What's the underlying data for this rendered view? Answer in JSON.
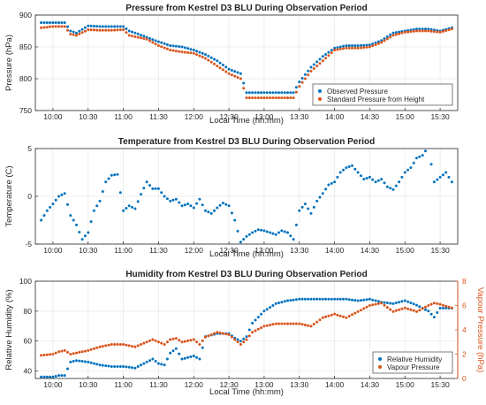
{
  "chart_data": [
    {
      "type": "scatter",
      "title": "Pressure from Kestrel D3 BLU During Observation Period",
      "xlabel": "Local Time (hh:mm)",
      "ylabel": "Pressure (hPa)",
      "xticks": [
        "10:00",
        "10:30",
        "11:00",
        "11:30",
        "12:00",
        "12:30",
        "13:00",
        "13:30",
        "14:00",
        "14:30",
        "15:00",
        "15:30"
      ],
      "xlim": [
        "09:45",
        "15:45"
      ],
      "yticks": [
        750,
        800,
        850,
        900
      ],
      "ylim": [
        750,
        900
      ],
      "grid": true,
      "legend": "bottom-right",
      "series": [
        {
          "name": "Observed Pressure",
          "color": "#0072bd",
          "x": [
            "09:50",
            "10:00",
            "10:10",
            "10:15",
            "10:20",
            "10:30",
            "10:40",
            "10:50",
            "11:00",
            "11:05",
            "11:10",
            "11:20",
            "11:30",
            "11:40",
            "11:50",
            "12:00",
            "12:10",
            "12:20",
            "12:30",
            "12:40",
            "12:45",
            "13:00",
            "13:15",
            "13:25",
            "13:30",
            "13:40",
            "13:50",
            "14:00",
            "14:10",
            "14:20",
            "14:30",
            "14:40",
            "14:50",
            "15:00",
            "15:10",
            "15:20",
            "15:30",
            "15:40"
          ],
          "y": [
            888,
            888,
            888,
            875,
            872,
            883,
            882,
            882,
            882,
            875,
            872,
            865,
            858,
            852,
            850,
            845,
            838,
            828,
            815,
            808,
            778,
            778,
            778,
            778,
            795,
            818,
            835,
            848,
            852,
            852,
            853,
            860,
            872,
            875,
            878,
            878,
            875,
            880
          ]
        },
        {
          "name": "Standard Pressure from Height",
          "color": "#d95319",
          "x": [
            "09:50",
            "10:00",
            "10:10",
            "10:15",
            "10:20",
            "10:30",
            "10:40",
            "10:50",
            "11:00",
            "11:05",
            "11:10",
            "11:20",
            "11:30",
            "11:40",
            "11:50",
            "12:00",
            "12:10",
            "12:20",
            "12:30",
            "12:40",
            "12:45",
            "13:00",
            "13:15",
            "13:25",
            "13:30",
            "13:40",
            "13:50",
            "14:00",
            "14:10",
            "14:20",
            "14:30",
            "14:40",
            "14:50",
            "15:00",
            "15:10",
            "15:20",
            "15:30",
            "15:40"
          ],
          "y": [
            880,
            882,
            882,
            870,
            868,
            877,
            876,
            876,
            877,
            868,
            866,
            862,
            852,
            845,
            842,
            840,
            832,
            820,
            808,
            800,
            770,
            770,
            770,
            770,
            788,
            812,
            828,
            845,
            848,
            848,
            850,
            857,
            868,
            873,
            875,
            875,
            873,
            878
          ]
        }
      ]
    },
    {
      "type": "scatter",
      "title": "Temperature from Kestrel D3 BLU During Observation Period",
      "xlabel": "Local Time (hh:mm)",
      "ylabel": "Temperature (C)",
      "xticks": [
        "10:00",
        "10:30",
        "11:00",
        "11:30",
        "12:00",
        "12:30",
        "13:00",
        "13:30",
        "14:00",
        "14:30",
        "15:00",
        "15:30"
      ],
      "xlim": [
        "09:45",
        "15:45"
      ],
      "yticks": [
        -5,
        0,
        5
      ],
      "ylim": [
        -5,
        5
      ],
      "grid": true,
      "series": [
        {
          "name": "Temperature",
          "color": "#0072bd",
          "x": [
            "09:50",
            "09:55",
            "10:00",
            "10:05",
            "10:10",
            "10:15",
            "10:20",
            "10:25",
            "10:30",
            "10:35",
            "10:40",
            "10:45",
            "10:50",
            "10:55",
            "11:00",
            "11:05",
            "11:10",
            "11:15",
            "11:20",
            "11:25",
            "11:30",
            "11:35",
            "11:40",
            "11:45",
            "11:50",
            "11:55",
            "12:00",
            "12:05",
            "12:10",
            "12:15",
            "12:20",
            "12:25",
            "12:30",
            "12:35",
            "12:40",
            "12:45",
            "12:50",
            "12:55",
            "13:00",
            "13:05",
            "13:10",
            "13:15",
            "13:20",
            "13:25",
            "13:30",
            "13:35",
            "13:40",
            "13:45",
            "13:50",
            "13:55",
            "14:00",
            "14:05",
            "14:10",
            "14:15",
            "14:20",
            "14:25",
            "14:30",
            "14:35",
            "14:40",
            "14:45",
            "14:50",
            "14:55",
            "15:00",
            "15:05",
            "15:10",
            "15:15",
            "15:20",
            "15:25",
            "15:30",
            "15:35",
            "15:40"
          ],
          "y": [
            -2.5,
            -1.5,
            -0.8,
            0.0,
            0.3,
            -2.0,
            -3.0,
            -4.5,
            -3.8,
            -1.5,
            -0.5,
            1.5,
            2.2,
            2.3,
            -1.5,
            -1.0,
            -1.3,
            0.2,
            1.5,
            0.8,
            0.8,
            0.0,
            -0.5,
            -0.3,
            -1.0,
            -0.8,
            -1.2,
            -0.3,
            -1.5,
            -1.8,
            -1.2,
            -0.7,
            -1.0,
            -2.5,
            -4.8,
            -4.2,
            -3.8,
            -3.5,
            -3.6,
            -3.8,
            -4.0,
            -3.6,
            -3.8,
            -4.5,
            -1.5,
            -0.8,
            -1.8,
            -0.5,
            0.3,
            1.2,
            1.5,
            2.5,
            3.0,
            3.2,
            2.5,
            1.8,
            2.0,
            1.5,
            1.8,
            1.0,
            0.7,
            1.5,
            2.5,
            3.0,
            4.0,
            4.3,
            5.2,
            1.5,
            2.0,
            2.5,
            1.5
          ]
        }
      ]
    },
    {
      "type": "scatter",
      "title": "Humidity from Kestrel D3 BLU During Observation Period",
      "xlabel": "Local Time (hh:mm)",
      "ylabel": "Relative Humidity (%)",
      "ylabel_right": "Vapour Pressure (hPa)",
      "xticks": [
        "10:00",
        "10:30",
        "11:00",
        "11:30",
        "12:00",
        "12:30",
        "13:00",
        "13:30",
        "14:00",
        "14:30",
        "15:00",
        "15:30"
      ],
      "xlim": [
        "09:45",
        "15:45"
      ],
      "yticks": [
        40,
        60,
        80,
        100
      ],
      "ylim": [
        35,
        100
      ],
      "yticks_right": [
        0,
        2,
        4,
        6,
        8
      ],
      "ylim_right": [
        0,
        8
      ],
      "grid": true,
      "legend": "bottom-right",
      "series": [
        {
          "name": "Relative Humidity",
          "color": "#0072bd",
          "axis": "left",
          "x": [
            "09:50",
            "10:00",
            "10:05",
            "10:10",
            "10:15",
            "10:20",
            "10:30",
            "10:40",
            "10:50",
            "11:00",
            "11:10",
            "11:15",
            "11:20",
            "11:25",
            "11:30",
            "11:35",
            "11:40",
            "11:45",
            "11:50",
            "12:00",
            "12:05",
            "12:10",
            "12:20",
            "12:30",
            "12:35",
            "12:40",
            "12:45",
            "12:50",
            "13:00",
            "13:10",
            "13:20",
            "13:30",
            "13:40",
            "13:50",
            "14:00",
            "14:10",
            "14:20",
            "14:30",
            "14:40",
            "14:50",
            "15:00",
            "15:10",
            "15:20",
            "15:25",
            "15:30",
            "15:40"
          ],
          "y": [
            36,
            36,
            37,
            37,
            46,
            47,
            46,
            44,
            43,
            43,
            42,
            44,
            46,
            48,
            45,
            44,
            52,
            55,
            48,
            50,
            48,
            63,
            65,
            65,
            62,
            60,
            63,
            72,
            80,
            85,
            87,
            88,
            88,
            88,
            88,
            88,
            87,
            88,
            86,
            85,
            87,
            84,
            80,
            76,
            82,
            82
          ]
        },
        {
          "name": "Vapour Pressure",
          "color": "#d95319",
          "axis": "right",
          "x": [
            "09:50",
            "10:00",
            "10:05",
            "10:10",
            "10:15",
            "10:20",
            "10:30",
            "10:40",
            "10:50",
            "11:00",
            "11:10",
            "11:15",
            "11:20",
            "11:25",
            "11:30",
            "11:35",
            "11:40",
            "11:45",
            "11:50",
            "12:00",
            "12:05",
            "12:10",
            "12:20",
            "12:30",
            "12:35",
            "12:40",
            "12:45",
            "12:50",
            "13:00",
            "13:10",
            "13:20",
            "13:30",
            "13:40",
            "13:50",
            "14:00",
            "14:10",
            "14:20",
            "14:30",
            "14:40",
            "14:50",
            "15:00",
            "15:10",
            "15:20",
            "15:25",
            "15:30",
            "15:40"
          ],
          "y": [
            1.9,
            2.0,
            2.2,
            2.3,
            2.0,
            2.1,
            2.3,
            2.6,
            2.8,
            2.8,
            2.6,
            2.8,
            3.0,
            3.2,
            3.0,
            2.8,
            3.2,
            3.3,
            3.0,
            3.2,
            2.8,
            3.4,
            3.8,
            3.6,
            3.2,
            2.8,
            3.2,
            3.8,
            4.3,
            4.5,
            4.5,
            4.5,
            4.3,
            5.0,
            5.3,
            5.0,
            5.5,
            6.0,
            6.2,
            5.5,
            5.8,
            5.5,
            6.0,
            6.2,
            6.1,
            5.8
          ]
        }
      ]
    }
  ]
}
